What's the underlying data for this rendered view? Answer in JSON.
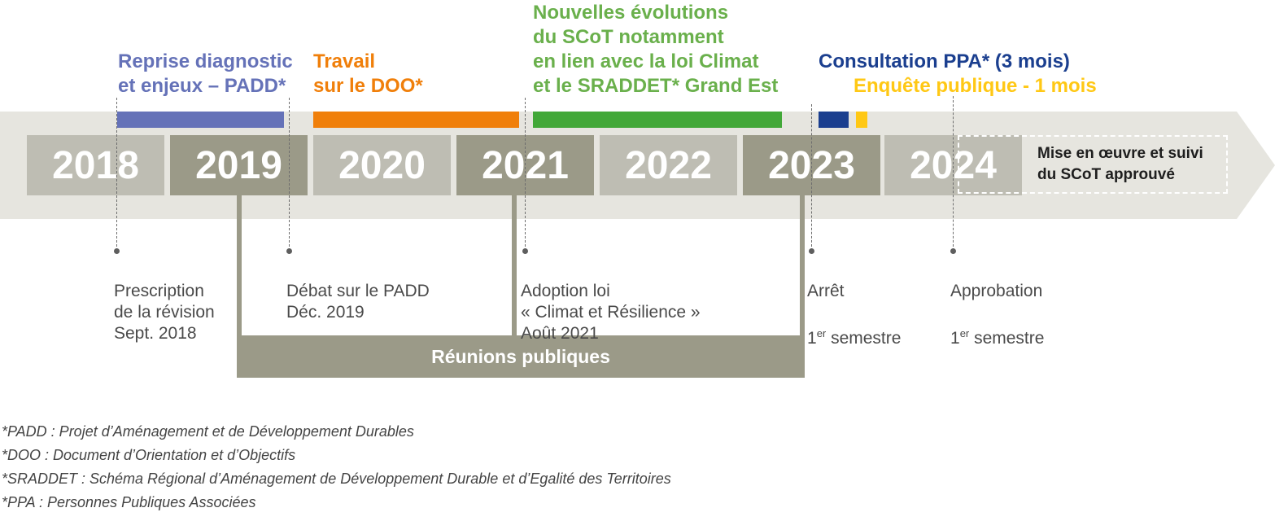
{
  "colors": {
    "band": "#e6e5df",
    "year_light": "#bebdb3",
    "year_dark": "#9b9a88",
    "phase_diag": "#6572b8",
    "phase_doo": "#f07f0a",
    "phase_evol": "#42a838",
    "phase_evol_text": "#6ab04c",
    "phase_ppa": "#1b3f8f",
    "phase_enquete": "#ffc815"
  },
  "years": [
    "2018",
    "2019",
    "2020",
    "2021",
    "2022",
    "2023",
    "2024"
  ],
  "phases": [
    {
      "lines": [
        "Reprise diagnostic",
        "et enjeux – PADD*"
      ]
    },
    {
      "lines": [
        "Travail",
        "sur le DOO*"
      ]
    },
    {
      "lines": [
        "Nouvelles évolutions",
        "du SCoT notamment",
        "en lien avec la loi Climat",
        "et le SRADDET* Grand Est"
      ]
    },
    {
      "lines": [
        "Consultation PPA* (3 mois)"
      ]
    },
    {
      "lines": [
        "Enquête publique - 1 mois"
      ]
    }
  ],
  "milestones": [
    {
      "lines": [
        "Prescription",
        "de la révision",
        "Sept. 2018"
      ]
    },
    {
      "lines": [
        "Débat sur le PADD",
        "Déc. 2019"
      ]
    },
    {
      "lines": [
        "Adoption loi",
        "« Climat et Résilience »",
        "Août 2021"
      ]
    },
    {
      "line1": "Arrêt",
      "ordinal": "1",
      "sup": "er",
      "rest": " semestre"
    },
    {
      "line1": "Approbation",
      "ordinal": "1",
      "sup": "er",
      "rest": " semestre"
    }
  ],
  "mise_en_oeuvre": [
    "Mise en œuvre et suivi",
    "du SCoT approuvé"
  ],
  "reunions": "Réunions publiques",
  "footnotes": [
    "*PADD : Projet d’Aménagement et de Développement Durables",
    "*DOO : Document d’Orientation et d’Objectifs",
    "*SRADDET : Schéma Régional d’Aménagement de Développement Durable et d’Egalité des Territoires",
    "*PPA : Personnes Publiques Associées"
  ]
}
